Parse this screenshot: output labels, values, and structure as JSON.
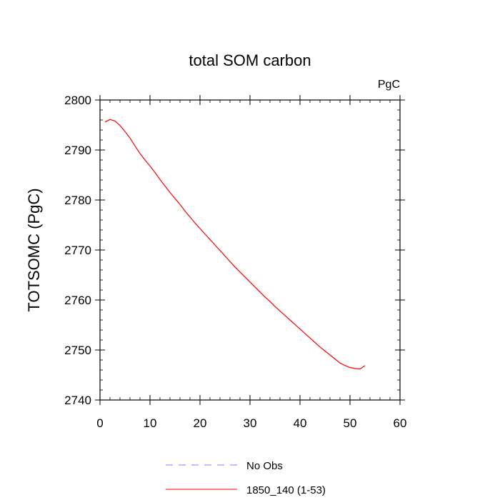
{
  "chart_data": {
    "type": "line",
    "title": "total SOM carbon",
    "units_label": "PgC",
    "ylabel": "TOTSOMC  (PgC)",
    "xlabel": "",
    "xlim": [
      0,
      60
    ],
    "ylim": [
      2740,
      2800
    ],
    "x_ticks": [
      0,
      10,
      20,
      30,
      40,
      50,
      60
    ],
    "y_ticks": [
      2740,
      2750,
      2760,
      2770,
      2780,
      2790,
      2800
    ],
    "grid": false,
    "legend_position": "bottom",
    "legend": [
      {
        "label": "No Obs",
        "color": "#8080ff",
        "style": "dashed"
      },
      {
        "label": "1850_140 (1-53)",
        "color": "#ff0000",
        "style": "solid"
      }
    ],
    "series": [
      {
        "name": "1850_140 (1-53)",
        "color": "#ff0000",
        "x": [
          1,
          2,
          3,
          4,
          5,
          6,
          7,
          8,
          9,
          10,
          11,
          12,
          13,
          14,
          15,
          16,
          17,
          18,
          19,
          20,
          21,
          22,
          23,
          24,
          25,
          26,
          27,
          28,
          29,
          30,
          31,
          32,
          33,
          34,
          35,
          36,
          37,
          38,
          39,
          40,
          41,
          42,
          43,
          44,
          45,
          46,
          47,
          48,
          49,
          50,
          51,
          52,
          53
        ],
        "values": [
          2795.6,
          2796.1,
          2795.8,
          2794.9,
          2793.7,
          2792.4,
          2790.8,
          2789.3,
          2788.0,
          2786.8,
          2785.5,
          2784.1,
          2782.8,
          2781.5,
          2780.3,
          2779.1,
          2777.8,
          2776.6,
          2775.4,
          2774.3,
          2773.2,
          2772.1,
          2771.0,
          2769.9,
          2768.8,
          2767.7,
          2766.6,
          2765.6,
          2764.6,
          2763.6,
          2762.6,
          2761.6,
          2760.6,
          2759.7,
          2758.7,
          2757.8,
          2756.9,
          2756.0,
          2755.1,
          2754.2,
          2753.3,
          2752.4,
          2751.5,
          2750.6,
          2749.8,
          2749.0,
          2748.2,
          2747.4,
          2746.9,
          2746.5,
          2746.3,
          2746.2,
          2746.9
        ]
      }
    ]
  }
}
